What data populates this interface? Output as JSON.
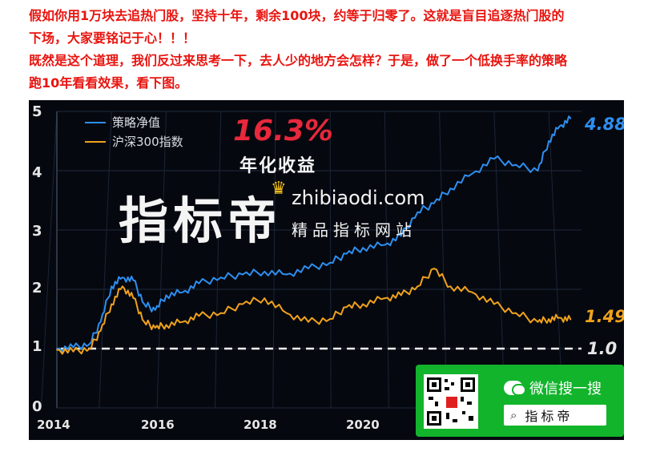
{
  "intro": {
    "line1": "假如你用1万块去追热门股，坚持十年，剩余100块，约等于归零了。这就是盲目追逐热门股的",
    "line2": "下场，大家要铭记于心！！！",
    "line3": "既然是这个道理，我们反过来思考一下，去人少的地方会怎样？于是，做了一个低换手率的策略",
    "line4": "跑10年看看效果，看下图。"
  },
  "badge": {
    "pct": "16.3%",
    "label": "年化收益"
  },
  "watermark": {
    "brand": "指标帝",
    "url": "zhibiaodi.com",
    "slogan": "精品指标网站"
  },
  "promo": {
    "title": "微信搜一搜",
    "search": "指标帝"
  },
  "colors": {
    "strategy": "#2e8ff0",
    "index": "#f0a21c",
    "background": "#06080f",
    "promo": "#12b42b"
  },
  "chart_data": {
    "type": "line",
    "title": "",
    "xlabel": "",
    "ylabel": "",
    "xlim": [
      2014,
      2023.6
    ],
    "ylim": [
      0,
      5
    ],
    "x_ticks": [
      "2014",
      "2016",
      "2018",
      "2020"
    ],
    "y_ticks": [
      "0",
      "1",
      "2",
      "3",
      "4",
      "5"
    ],
    "end_labels": {
      "strategy": "4.88",
      "index": "1.49",
      "baseline": "1.0"
    },
    "baseline": 1.0,
    "grid": true,
    "legend_position": "top-left",
    "series": [
      {
        "name": "策略净值",
        "x": [
          2014.0,
          2014.3,
          2014.6,
          2014.8,
          2015.0,
          2015.2,
          2015.4,
          2015.6,
          2015.8,
          2016.0,
          2016.3,
          2016.6,
          2017.0,
          2017.4,
          2017.8,
          2018.2,
          2018.6,
          2019.0,
          2019.3,
          2019.6,
          2020.0,
          2020.3,
          2020.6,
          2020.9,
          2021.2,
          2021.6,
          2022.0,
          2022.4,
          2022.8,
          2023.0,
          2023.2,
          2023.4
        ],
        "values": [
          1.0,
          1.02,
          1.08,
          1.45,
          2.05,
          2.2,
          2.15,
          1.75,
          1.65,
          1.9,
          1.95,
          2.1,
          2.2,
          2.25,
          2.3,
          2.25,
          2.35,
          2.45,
          2.6,
          2.7,
          2.75,
          2.9,
          3.3,
          3.45,
          3.7,
          3.95,
          4.2,
          4.1,
          4.0,
          4.5,
          4.75,
          4.88
        ]
      },
      {
        "name": "沪深300指数",
        "x": [
          2014.0,
          2014.3,
          2014.6,
          2014.8,
          2015.0,
          2015.2,
          2015.4,
          2015.6,
          2015.8,
          2016.0,
          2016.3,
          2016.6,
          2017.0,
          2017.4,
          2017.8,
          2018.2,
          2018.6,
          2019.0,
          2019.3,
          2019.6,
          2020.0,
          2020.3,
          2020.6,
          2020.9,
          2021.2,
          2021.6,
          2022.0,
          2022.4,
          2022.8,
          2023.0,
          2023.2,
          2023.4
        ],
        "values": [
          0.98,
          0.95,
          1.0,
          1.3,
          1.75,
          2.05,
          1.85,
          1.45,
          1.35,
          1.4,
          1.45,
          1.55,
          1.6,
          1.75,
          1.85,
          1.6,
          1.45,
          1.5,
          1.7,
          1.75,
          1.85,
          1.9,
          2.05,
          2.35,
          2.05,
          1.95,
          1.75,
          1.6,
          1.45,
          1.5,
          1.52,
          1.49
        ]
      }
    ]
  }
}
